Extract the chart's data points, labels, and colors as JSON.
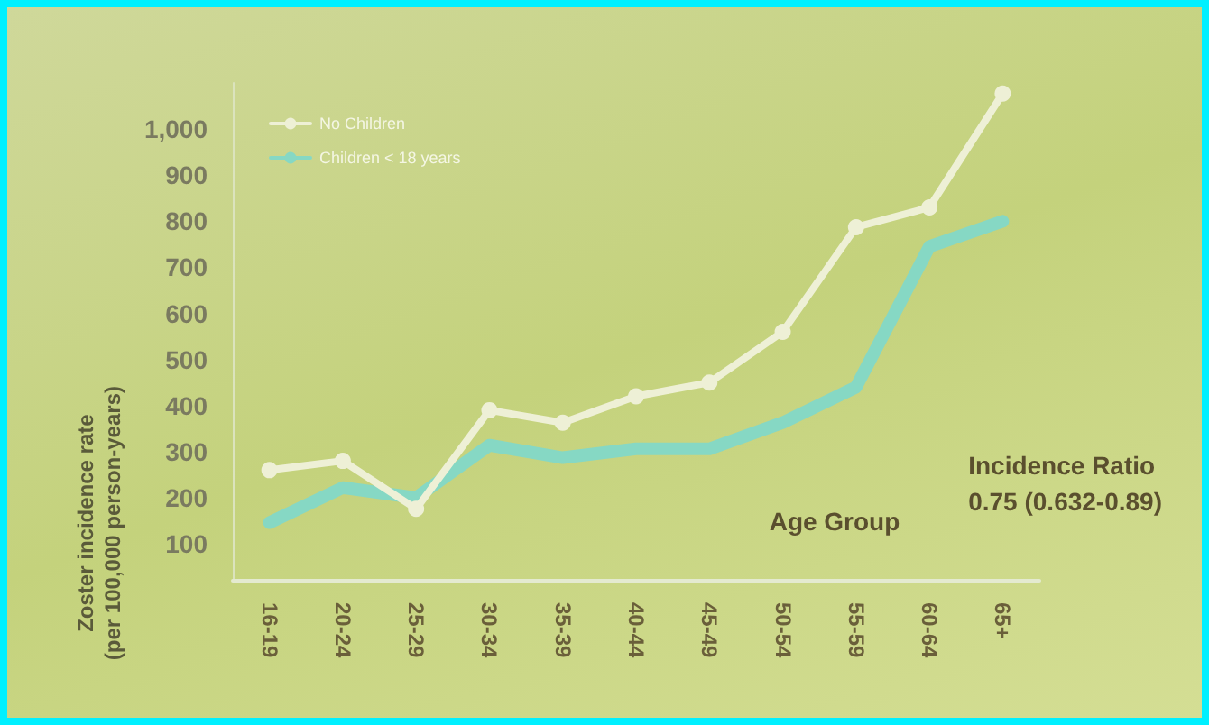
{
  "chart_data": {
    "type": "line",
    "xlabel": "Age Group",
    "ylabel": "Zoster incidence rate\n(per 100,000 person-years)",
    "categories": [
      "16-19",
      "20-24",
      "25-29",
      "30-34",
      "35-39",
      "40-44",
      "45-49",
      "50-54",
      "55-59",
      "60-64",
      "65+"
    ],
    "series": [
      {
        "name": "No Children",
        "color": "#eef0d6",
        "marker": "circle",
        "values": [
          260,
          280,
          176,
          390,
          363,
          420,
          450,
          560,
          787,
          830,
          1077
        ]
      },
      {
        "name": "Children < 18 years",
        "color": "#86d8c4",
        "marker": "none",
        "values": [
          146,
          222,
          200,
          314,
          287,
          306,
          306,
          363,
          440,
          745,
          800
        ]
      }
    ],
    "ylim": [
      20,
      1100
    ],
    "yticks": [
      100,
      200,
      300,
      400,
      500,
      600,
      700,
      800,
      900,
      {
        "value": 1000,
        "label": "1,000"
      }
    ],
    "grid": false,
    "legend": "top left",
    "annotations": [
      "Incidence Ratio\n0.75 (0.632-0.89)"
    ]
  }
}
